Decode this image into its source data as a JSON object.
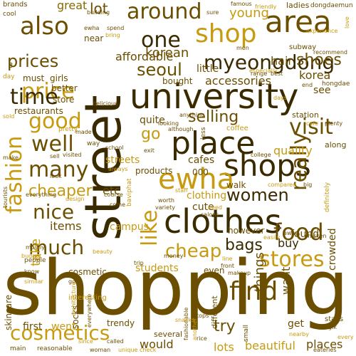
{
  "colors": {
    "dark": "#3a2a00",
    "brown": "#6b4e00",
    "olive": "#8a6a00",
    "gold": "#c79a10",
    "light": "#d9b23a",
    "pale": "#e2c45a"
  },
  "words": {
    "shopping": "shopping",
    "street": "street",
    "university": "university",
    "clothes": "clothes",
    "place": "place",
    "shop": "shop",
    "area": "area",
    "shops": "shops",
    "ewha": "ewha",
    "myeongdong": "myeongdong",
    "fashion": "fashion",
    "cosmetics": "cosmetics",
    "also": "also",
    "around": "around",
    "prices": "prices",
    "price": "price",
    "seoul": "seoul",
    "one": "one",
    "good": "good",
    "time": "time",
    "well": "well",
    "visit": "visit",
    "really": "really",
    "many": "many",
    "women": "women",
    "food": "food",
    "cheap": "cheap",
    "stores": "stores",
    "find": "find",
    "much": "much",
    "nice": "nice",
    "cheaper": "cheaper",
    "shoes": "shoes",
    "selling": "selling",
    "like": "like",
    "bags": "bags",
    "accessories": "accessories",
    "go": "go",
    "lot": "lot",
    "great": "great",
    "young": "young",
    "korean": "korean",
    "affordable": "affordable",
    "must": "must",
    "girls": "girls",
    "hair": "hair",
    "little": "little",
    "quality": "quality",
    "etc": "etc",
    "streets": "streets",
    "cafes": "cafes",
    "buy": "buy",
    "items": "items",
    "take": "take",
    "students": "students",
    "things": "things",
    "want": "want",
    "cute": "cute",
    "clothing": "clothing",
    "campus": "campus",
    "found": "found",
    "however": "however",
    "lots": "lots",
    "beautiful": "beautiful",
    "places": "places",
    "would": "would",
    "went": "went",
    "first": "first",
    "try": "try",
    "get": "get",
    "quite": "quite",
    "restaurants": "restaurants",
    "better": "better",
    "store": "store",
    "korea": "korea",
    "see": "see",
    "walk": "walk",
    "crowded": "crowded",
    "products": "products",
    "cosmetic": "cosmetic",
    "even": "even",
    "socks": "socks",
    "skincare": "skincare",
    "trendy": "trendy",
    "different": "different",
    "near": "near",
    "bought": "bought",
    "station": "station",
    "coffee": "coffee",
    "along": "along",
    "ladies": "ladies",
    "dongdaemun": "dongdaemun",
    "hongdae": "hongdae",
    "subway": "subway",
    "brands": "brands",
    "cool": "cool",
    "several": "several",
    "interesting": "interesting",
    "stalls": "stalls",
    "small": "small",
    "000": "000",
    "2": "2",
    "3": "3",
    "day": "day",
    "way": "way",
    "every": "every",
    "main": "main",
    "reasonable": "reasonable",
    "people": "people",
    "pretty": "pretty",
    "design": "design",
    "course": "course",
    "come": "come",
    "since": "since",
    "unique": "unique",
    "check": "check",
    "tourists": "tourists",
    "budget": "budget",
    "beauty": "beauty",
    "money": "money",
    "makeup": "makeup",
    "famous": "famous",
    "friendly": "friendly",
    "building": "building",
    "spend": "spend",
    "bring": "bring",
    "sure": "sure",
    "love": "love",
    "experience": "experience",
    "especially": "especially",
    "recommend": "recommend",
    "men": "men",
    "range": "range",
    "best": "best",
    "end": "end",
    "sold": "sold",
    "delicious": "delicious",
    "look": "look",
    "visited": "visited",
    "sell": "sell",
    "make": "make",
    "made": "made",
    "school": "school",
    "exit": "exit",
    "always": "always",
    "looking": "looking",
    "although": "although",
    "anything": "anything",
    "less": "less",
    "cafe": "cafe",
    "plenty": "plenty",
    "days": "days",
    "college": "college",
    "compared": "compared",
    "big": "big",
    "definitely": "definitely",
    "staff": "staff",
    "worth": "worth",
    "variety": "variety",
    "need": "need",
    "salons": "salons",
    "easily": "easily",
    "away": "away",
    "chicken": "chicken",
    "line": "line",
    "front": "front",
    "us": "us",
    "trip": "trip",
    "got": "got",
    "know": "know",
    "similar": "similar",
    "architecture": "architecture",
    "everywhere": "everywhere",
    "called": "called",
    "woman": "woman",
    "fashionable": "fashionable",
    "another": "another",
    "tops": "tops",
    "snacks": "snacks",
    "rice": "rice",
    "nearby": "nearby",
    "eateries": "eateries",
    "hongik": "hongik",
    "baviphat": "baviphat",
    "ewha_small": "ewha",
    "mostly": "mostly",
    "everything": "everything"
  }
}
